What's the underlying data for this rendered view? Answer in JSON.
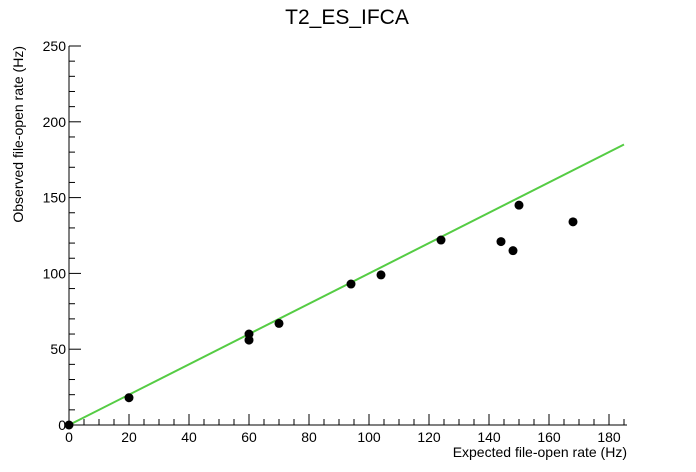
{
  "chart_data": {
    "type": "scatter",
    "title": "T2_ES_IFCA",
    "xlabel": "Expected file-open rate (Hz)",
    "ylabel": "Observed file-open rate (Hz)",
    "xlim": [
      0,
      186
    ],
    "ylim": [
      0,
      250
    ],
    "x_ticks": [
      0,
      20,
      40,
      60,
      80,
      100,
      120,
      140,
      160,
      180
    ],
    "y_ticks": [
      0,
      50,
      100,
      150,
      200,
      250
    ],
    "grid": false,
    "legend": "none",
    "points": [
      {
        "x": 0,
        "y": 0
      },
      {
        "x": 20,
        "y": 18
      },
      {
        "x": 60,
        "y": 60
      },
      {
        "x": 60,
        "y": 56
      },
      {
        "x": 70,
        "y": 67
      },
      {
        "x": 94,
        "y": 93
      },
      {
        "x": 104,
        "y": 99
      },
      {
        "x": 124,
        "y": 122
      },
      {
        "x": 144,
        "y": 121
      },
      {
        "x": 148,
        "y": 115
      },
      {
        "x": 150,
        "y": 145
      },
      {
        "x": 168,
        "y": 134
      }
    ],
    "reference_line": {
      "x": [
        0,
        185
      ],
      "y": [
        0,
        185
      ],
      "color": "#55cc44"
    },
    "marker_color": "#000000"
  }
}
